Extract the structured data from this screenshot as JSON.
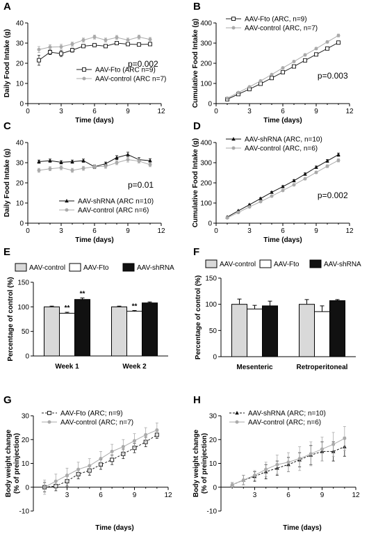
{
  "colors": {
    "fto": "#222222",
    "control": "#aaaaaa",
    "shrna": "#111111",
    "bar_control": "#d9d9d9",
    "bar_fto": "#ffffff",
    "bar_shrna": "#111111"
  },
  "chart_data": [
    {
      "id": "A",
      "type": "line",
      "panel_label": "A",
      "xlabel": "Time (days)",
      "ylabel": "Daily Food Intake (g)",
      "xlim": [
        0,
        12
      ],
      "ylim": [
        0,
        40
      ],
      "xticks": [
        0,
        3,
        6,
        9,
        12
      ],
      "yticks": [
        0,
        10,
        20,
        30,
        40
      ],
      "legend_pos": "bottom-right",
      "annotation": "p=0.002",
      "series": [
        {
          "name": "AAV-Fto (ARC n=9)",
          "marker": "open-square",
          "color": "fto",
          "x": [
            1,
            2,
            3,
            4,
            5,
            6,
            7,
            8,
            9,
            10,
            11
          ],
          "y": [
            21.5,
            25.5,
            24.8,
            26.5,
            28.5,
            29,
            28.5,
            30,
            29.5,
            29.3,
            29.5
          ],
          "err": [
            2.5,
            1.2,
            1.5,
            1,
            0.8,
            0.8,
            0.8,
            0.8,
            0.8,
            0.8,
            0.8
          ]
        },
        {
          "name": "AAV-control (ARC n=7)",
          "marker": "filled-circle",
          "color": "control",
          "x": [
            1,
            2,
            3,
            4,
            5,
            6,
            7,
            8,
            9,
            10,
            11
          ],
          "y": [
            26.8,
            28,
            28.2,
            29.5,
            31.5,
            33,
            31.5,
            32.8,
            31.5,
            33,
            31.8
          ],
          "err": [
            1.5,
            1.2,
            1.2,
            1,
            1,
            1,
            1,
            1,
            1,
            1,
            1
          ]
        }
      ]
    },
    {
      "id": "B",
      "type": "line",
      "panel_label": "B",
      "xlabel": "Time (days)",
      "ylabel": "Cumulative Food Intake (g)",
      "xlim": [
        0,
        12
      ],
      "ylim": [
        0,
        400
      ],
      "xticks": [
        0,
        3,
        6,
        9,
        12
      ],
      "yticks": [
        0,
        100,
        200,
        300,
        400
      ],
      "legend_pos": "top-left",
      "annotation": "p=0.003",
      "series": [
        {
          "name": "AAV-Fto (ARC, n=9)",
          "marker": "open-square",
          "color": "fto",
          "x": [
            1,
            2,
            3,
            4,
            5,
            6,
            7,
            8,
            9,
            10,
            11
          ],
          "y": [
            21.5,
            47,
            71.8,
            98.3,
            126.8,
            155.8,
            184.3,
            214.3,
            243.8,
            273.1,
            302.6
          ],
          "err": [
            2,
            3,
            3,
            4,
            4,
            5,
            5,
            6,
            6,
            6,
            7
          ]
        },
        {
          "name": "AAV-control (ARC, n=7)",
          "marker": "filled-circle",
          "color": "control",
          "x": [
            1,
            2,
            3,
            4,
            5,
            6,
            7,
            8,
            9,
            10,
            11
          ],
          "y": [
            26.8,
            54.8,
            83,
            112.5,
            144,
            177,
            208.5,
            241.3,
            272.8,
            305.8,
            337.6
          ],
          "err": [
            2,
            3,
            3,
            4,
            4,
            5,
            5,
            6,
            6,
            6,
            7
          ]
        }
      ]
    },
    {
      "id": "C",
      "type": "line",
      "panel_label": "C",
      "xlabel": "Time (days)",
      "ylabel": "Daily Food Intake (g)",
      "xlim": [
        0,
        12
      ],
      "ylim": [
        0,
        40
      ],
      "xticks": [
        0,
        3,
        6,
        9,
        12
      ],
      "yticks": [
        0,
        10,
        20,
        30,
        40
      ],
      "legend_pos": "bottom-right",
      "annotation": "p=0.01",
      "series": [
        {
          "name": "AAV-shRNA (ARC n=10)",
          "marker": "filled-triangle",
          "color": "shrna",
          "x": [
            1,
            2,
            3,
            4,
            5,
            6,
            7,
            8,
            9,
            10,
            11
          ],
          "y": [
            30.5,
            31,
            30.2,
            30.5,
            31,
            28,
            29.5,
            32.5,
            34,
            31.5,
            31
          ],
          "err": [
            0.8,
            0.8,
            0.8,
            0.8,
            0.8,
            0.8,
            0.8,
            1,
            1.2,
            1,
            1
          ]
        },
        {
          "name": "AAV-control (ARC n=6)",
          "marker": "filled-circle",
          "color": "control",
          "x": [
            1,
            2,
            3,
            4,
            5,
            6,
            7,
            8,
            9,
            10,
            11
          ],
          "y": [
            26.2,
            27,
            27.5,
            26.2,
            27.2,
            28,
            28.2,
            30,
            31.5,
            30.8,
            29
          ],
          "err": [
            1,
            1,
            1,
            1,
            1,
            1,
            1,
            1,
            1.2,
            1,
            1
          ]
        }
      ]
    },
    {
      "id": "D",
      "type": "line",
      "panel_label": "D",
      "xlabel": "Time (days)",
      "ylabel": "Cumulative Food Intake (g)",
      "xlim": [
        0,
        12
      ],
      "ylim": [
        0,
        400
      ],
      "xticks": [
        0,
        3,
        6,
        9,
        12
      ],
      "yticks": [
        0,
        100,
        200,
        300,
        400
      ],
      "legend_pos": "top-left",
      "annotation": "p=0.002",
      "series": [
        {
          "name": "AAV-shRNA (ARC, n=10)",
          "marker": "filled-triangle",
          "color": "shrna",
          "x": [
            1,
            2,
            3,
            4,
            5,
            6,
            7,
            8,
            9,
            10,
            11
          ],
          "y": [
            30.5,
            61.5,
            91.7,
            122.2,
            153.2,
            181.2,
            210.7,
            243.2,
            277.2,
            308.7,
            339.7
          ],
          "err": [
            2,
            3,
            3,
            4,
            4,
            5,
            5,
            6,
            6,
            7,
            8
          ]
        },
        {
          "name": "AAV-control (ARC, n=6)",
          "marker": "filled-circle",
          "color": "control",
          "x": [
            1,
            2,
            3,
            4,
            5,
            6,
            7,
            8,
            9,
            10,
            11
          ],
          "y": [
            26.2,
            53.2,
            80.7,
            106.9,
            134.1,
            162.1,
            190.3,
            220.3,
            251.8,
            282.6,
            311.6
          ],
          "err": [
            2,
            3,
            3,
            4,
            4,
            5,
            5,
            6,
            6,
            7,
            8
          ]
        }
      ]
    },
    {
      "id": "E",
      "type": "bar",
      "panel_label": "E",
      "xlabel": "",
      "ylabel": "Percentage of control (%)",
      "ylim": [
        0,
        150
      ],
      "yticks": [
        0,
        50,
        100,
        150
      ],
      "categories": [
        "Week 1",
        "Week 2"
      ],
      "legend_pos": "top",
      "series": [
        {
          "name": "AAV-control",
          "color": "bar_control",
          "values": [
            100,
            100
          ],
          "err": [
            1.5,
            1.5
          ],
          "sig": [
            "",
            ""
          ]
        },
        {
          "name": "AAV-Fto",
          "color": "bar_fto",
          "values": [
            87,
            91
          ],
          "err": [
            2,
            1.5
          ],
          "sig": [
            "**",
            "**"
          ]
        },
        {
          "name": "AAV-shRNA",
          "color": "bar_shrna",
          "values": [
            115,
            108
          ],
          "err": [
            3,
            2
          ],
          "sig": [
            "**",
            ""
          ]
        }
      ]
    },
    {
      "id": "F",
      "type": "bar",
      "panel_label": "F",
      "xlabel": "",
      "ylabel": "Percentage of control (%)",
      "ylim": [
        0,
        150
      ],
      "yticks": [
        0,
        50,
        100,
        150
      ],
      "categories": [
        "Mesenteric",
        "Retroperitoneal"
      ],
      "legend_pos": "top",
      "series": [
        {
          "name": "AAV-control",
          "color": "bar_control",
          "values": [
            100,
            100
          ],
          "err": [
            10,
            9
          ],
          "sig": [
            "",
            ""
          ]
        },
        {
          "name": "AAV-Fto",
          "color": "bar_fto",
          "values": [
            91,
            86
          ],
          "err": [
            7,
            11
          ],
          "sig": [
            "",
            ""
          ]
        },
        {
          "name": "AAV-shRNA",
          "color": "bar_shrna",
          "values": [
            97,
            107
          ],
          "err": [
            9,
            2
          ],
          "sig": [
            "",
            ""
          ]
        }
      ]
    },
    {
      "id": "G",
      "type": "line",
      "panel_label": "G",
      "xlabel": "Time (days)",
      "ylabel": "Body weight change\n(% of preinjection)",
      "xlim": [
        0,
        12
      ],
      "ylim": [
        -10,
        30
      ],
      "xticks": [
        3,
        6,
        9,
        12
      ],
      "yticks": [
        -10,
        0,
        10,
        20,
        30
      ],
      "legend_pos": "top-left",
      "dashed_first": true,
      "series": [
        {
          "name": "AAV-Fto (ARC; n=9)",
          "marker": "open-square",
          "color": "fto",
          "x": [
            1,
            2,
            3,
            4,
            5,
            6,
            7,
            8,
            9,
            10,
            11
          ],
          "y": [
            0,
            0.5,
            2.5,
            5.5,
            7,
            9.5,
            11.5,
            14,
            16.5,
            19,
            22
          ],
          "err": [
            2,
            2,
            2,
            2,
            2,
            2,
            2,
            2,
            2,
            2,
            1.5
          ]
        },
        {
          "name": "AAV-control (ARC; n=7)",
          "marker": "filled-circle",
          "color": "control",
          "x": [
            1,
            2,
            3,
            4,
            5,
            6,
            7,
            8,
            9,
            10,
            11
          ],
          "y": [
            0,
            2.5,
            5,
            7.5,
            9,
            12,
            15,
            17,
            19.5,
            22,
            24
          ],
          "err": [
            3,
            3,
            3,
            3,
            3,
            3,
            3,
            3,
            3,
            3,
            3
          ]
        }
      ]
    },
    {
      "id": "H",
      "type": "line",
      "panel_label": "H",
      "xlabel": "Time (days)",
      "ylabel": "Body weight change\n(% of preinjection)",
      "xlim": [
        0,
        12
      ],
      "ylim": [
        -10,
        30
      ],
      "xticks": [
        3,
        6,
        9,
        12
      ],
      "yticks": [
        -10,
        0,
        10,
        20,
        30
      ],
      "legend_pos": "top-left",
      "dashed_first": true,
      "series": [
        {
          "name": "AAV-shRNA (ARC; n=10)",
          "marker": "filled-triangle",
          "color": "shrna",
          "x": [
            1,
            2,
            3,
            4,
            5,
            6,
            7,
            8,
            9,
            10,
            11
          ],
          "y": [
            1,
            3,
            4.5,
            6.5,
            8,
            9.5,
            11.5,
            13.5,
            15,
            15,
            17
          ],
          "err": [
            1,
            2,
            2,
            3,
            3,
            3,
            3,
            4,
            4,
            4,
            4
          ]
        },
        {
          "name": "AAV-control (ARC; n=6)",
          "marker": "filled-circle",
          "color": "control",
          "x": [
            1,
            2,
            3,
            4,
            5,
            6,
            7,
            8,
            9,
            10,
            11
          ],
          "y": [
            1,
            3,
            5,
            7.5,
            9.5,
            10.5,
            12,
            14,
            16,
            18,
            20.5
          ],
          "err": [
            1,
            2,
            2,
            3,
            4,
            4,
            5,
            5,
            5,
            5,
            5
          ]
        }
      ]
    }
  ]
}
